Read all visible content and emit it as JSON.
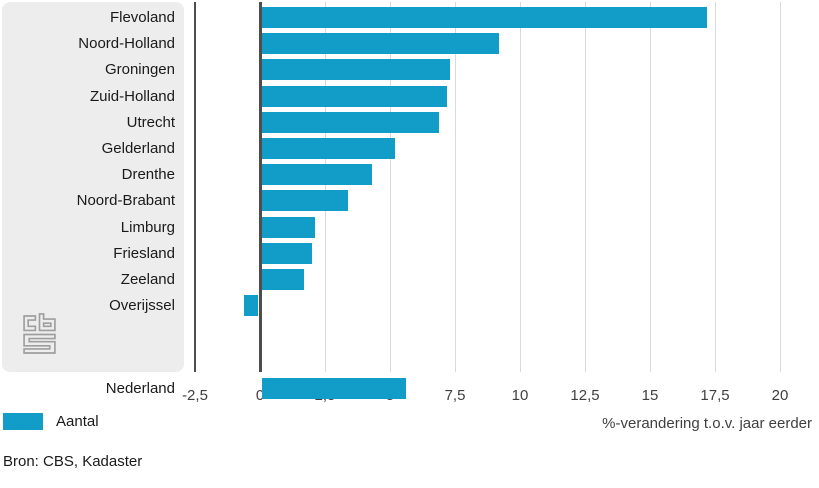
{
  "chart_data": {
    "type": "bar",
    "orientation": "horizontal",
    "categories": [
      "Flevoland",
      "Noord-Holland",
      "Groningen",
      "Zuid-Holland",
      "Utrecht",
      "Gelderland",
      "Drenthe",
      "Noord-Brabant",
      "Limburg",
      "Friesland",
      "Zeeland",
      "Overijssel",
      "Nederland"
    ],
    "values": [
      17.2,
      9.2,
      7.3,
      7.2,
      6.9,
      5.2,
      4.3,
      3.4,
      2.1,
      2.0,
      1.7,
      -0.6,
      5.6
    ],
    "summary_category": "Nederland",
    "series_name": "Aantal",
    "title": "",
    "xlabel": "%-verandering t.o.v. jaar eerder",
    "ylabel": "",
    "xlim": [
      -2.5,
      20
    ],
    "xticks": [
      -2.5,
      0,
      2.5,
      5,
      7.5,
      10,
      12.5,
      15,
      17.5,
      20
    ],
    "xtick_labels": [
      "-2,5",
      "0",
      "2,5",
      "5",
      "7,5",
      "10",
      "12,5",
      "15",
      "17,5",
      "20"
    ],
    "grid": true,
    "legend_position": "bottom-left",
    "bar_color": "#129dc8"
  },
  "legend": {
    "label": "Aantal",
    "swatch_color": "#129dc8"
  },
  "source": {
    "text": "Bron: CBS, Kadaster"
  },
  "logo": {
    "name": "cbs-logo"
  },
  "colors": {
    "bar": "#129dc8",
    "panel_bg": "#ededed",
    "axis_line": "#4d4d4d",
    "gridline": "#d9d9d9",
    "tick_text": "#404040",
    "label_text": "#1a1a1a",
    "logo_stroke": "#9e9e9e"
  }
}
